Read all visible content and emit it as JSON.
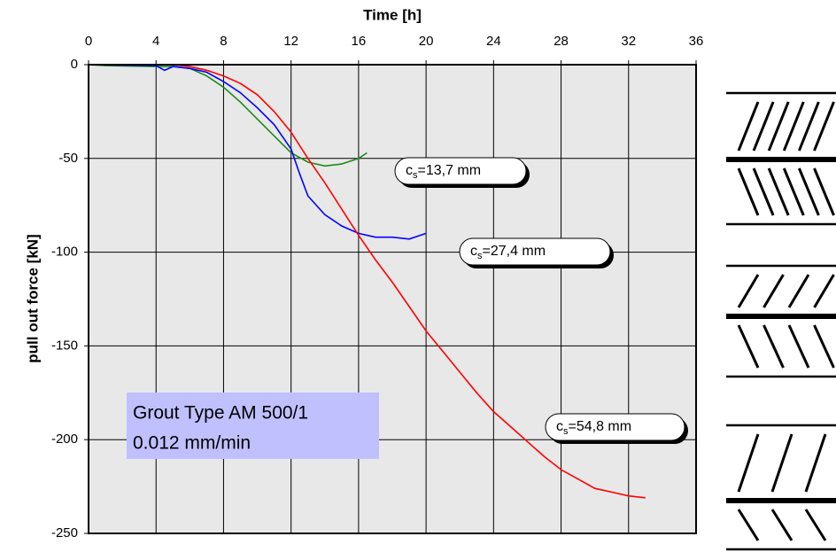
{
  "chart_data": {
    "type": "line",
    "xlabel": "Time [h]",
    "ylabel": "pull out force [kN]",
    "xlim": [
      0,
      36
    ],
    "xticks": [
      0,
      4,
      8,
      12,
      16,
      20,
      24,
      28,
      32,
      36
    ],
    "ylim": [
      -250,
      0
    ],
    "yticks": [
      0,
      -50,
      -100,
      -150,
      -200,
      -250
    ],
    "grid": true,
    "series": [
      {
        "color": "#1a8a1a",
        "x": [
          0,
          1,
          4,
          5,
          6,
          7,
          8,
          9,
          10,
          11,
          12,
          13,
          14,
          15,
          16,
          16.5
        ],
        "values": [
          0,
          -0.5,
          -1,
          -1,
          -2,
          -6,
          -12,
          -20,
          -29,
          -38,
          -47,
          -52,
          -54,
          -53,
          -50,
          -47
        ]
      },
      {
        "color": "#0000ff",
        "x": [
          0,
          4,
          4.5,
          5,
          6,
          7,
          8,
          9,
          10,
          11,
          12,
          12.5,
          13,
          14,
          15,
          16,
          17,
          18,
          19,
          20
        ],
        "values": [
          0,
          -0.5,
          -3,
          -1,
          -2,
          -4,
          -9,
          -15,
          -23,
          -32,
          -45,
          -58,
          -70,
          -80,
          -86,
          -90,
          -92,
          -92,
          -93,
          -90
        ]
      },
      {
        "color": "#ff0000",
        "x": [
          4,
          5,
          6,
          7,
          8,
          9,
          10,
          11,
          12,
          13,
          14,
          15,
          16,
          17,
          18,
          19,
          20,
          21,
          22,
          23,
          24,
          25,
          26,
          27,
          28,
          29,
          30,
          31,
          32,
          33
        ],
        "values": [
          0,
          0,
          -1,
          -3,
          -6,
          -10,
          -16,
          -25,
          -36,
          -50,
          -63,
          -77,
          -91,
          -104,
          -116,
          -129,
          -142,
          -153,
          -164,
          -175,
          -185,
          -193,
          -201,
          -209,
          -216,
          -221,
          -226,
          -228,
          -230,
          -231
        ]
      }
    ],
    "annotations": [
      {
        "main": "c",
        "sub": "s",
        "rest": "=13,7 mm"
      },
      {
        "main": "c",
        "sub": "s",
        "rest": "=27,4 mm"
      },
      {
        "main": "c",
        "sub": "s",
        "rest": "=54,8 mm"
      }
    ],
    "info_box": [
      "Grout Type AM 500/1",
      "0.012 mm/min"
    ]
  }
}
